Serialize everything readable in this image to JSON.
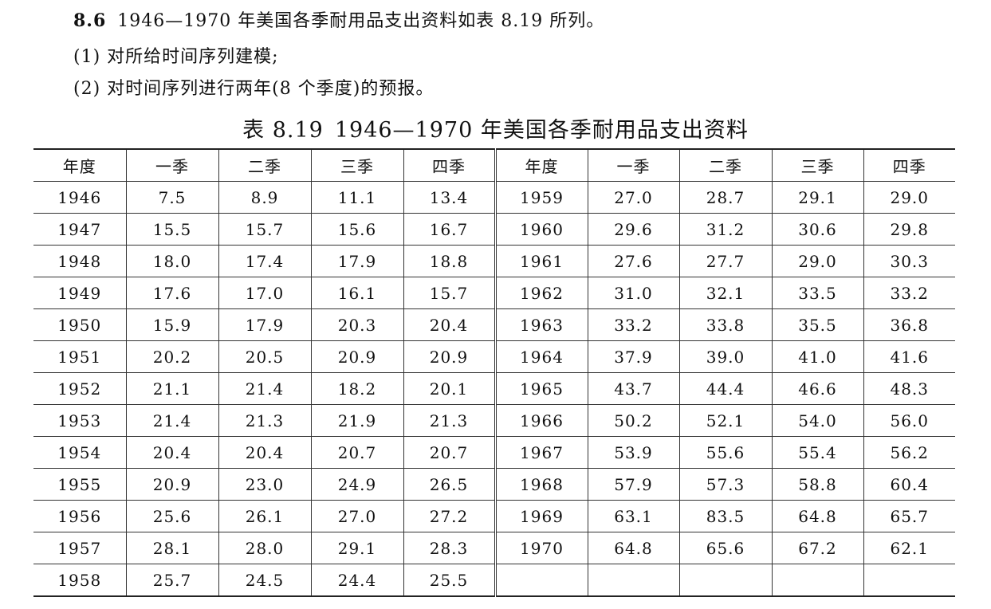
{
  "problem": {
    "number": "8.6",
    "statement": "1946—1970 年美国各季耐用品支出资料如表 8.19 所列。",
    "items": [
      "(1) 对所给时间序列建模;",
      "(2) 对时间序列进行两年(8 个季度)的预报。"
    ]
  },
  "table": {
    "caption_number": "表 8.19",
    "caption_title": "1946—1970 年美国各季耐用品支出资料",
    "headers": [
      "年度",
      "一季",
      "二季",
      "三季",
      "四季",
      "年度",
      "一季",
      "二季",
      "三季",
      "四季"
    ],
    "rows": [
      [
        "1946",
        "7.5",
        "8.9",
        "11.1",
        "13.4",
        "1959",
        "27.0",
        "28.7",
        "29.1",
        "29.0"
      ],
      [
        "1947",
        "15.5",
        "15.7",
        "15.6",
        "16.7",
        "1960",
        "29.6",
        "31.2",
        "30.6",
        "29.8"
      ],
      [
        "1948",
        "18.0",
        "17.4",
        "17.9",
        "18.8",
        "1961",
        "27.6",
        "27.7",
        "29.0",
        "30.3"
      ],
      [
        "1949",
        "17.6",
        "17.0",
        "16.1",
        "15.7",
        "1962",
        "31.0",
        "32.1",
        "33.5",
        "33.2"
      ],
      [
        "1950",
        "15.9",
        "17.9",
        "20.3",
        "20.4",
        "1963",
        "33.2",
        "33.8",
        "35.5",
        "36.8"
      ],
      [
        "1951",
        "20.2",
        "20.5",
        "20.9",
        "20.9",
        "1964",
        "37.9",
        "39.0",
        "41.0",
        "41.6"
      ],
      [
        "1952",
        "21.1",
        "21.4",
        "18.2",
        "20.1",
        "1965",
        "43.7",
        "44.4",
        "46.6",
        "48.3"
      ],
      [
        "1953",
        "21.4",
        "21.3",
        "21.9",
        "21.3",
        "1966",
        "50.2",
        "52.1",
        "54.0",
        "56.0"
      ],
      [
        "1954",
        "20.4",
        "20.4",
        "20.7",
        "20.7",
        "1967",
        "53.9",
        "55.6",
        "55.4",
        "56.2"
      ],
      [
        "1955",
        "20.9",
        "23.0",
        "24.9",
        "26.5",
        "1968",
        "57.9",
        "57.3",
        "58.8",
        "60.4"
      ],
      [
        "1956",
        "25.6",
        "26.1",
        "27.0",
        "27.2",
        "1969",
        "63.1",
        "83.5",
        "64.8",
        "65.7"
      ],
      [
        "1957",
        "28.1",
        "28.0",
        "29.1",
        "28.3",
        "1970",
        "64.8",
        "65.6",
        "67.2",
        "62.1"
      ],
      [
        "1958",
        "25.7",
        "24.5",
        "24.4",
        "25.5",
        "",
        "",
        "",
        "",
        ""
      ]
    ]
  }
}
